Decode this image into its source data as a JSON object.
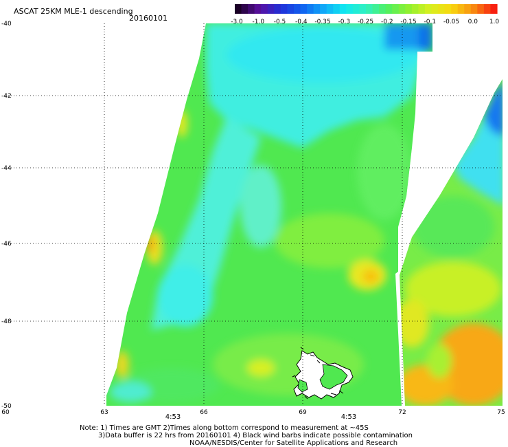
{
  "header": {
    "title": "ASCAT 25KM MLE-1 descending",
    "date": "20160101"
  },
  "colorbar": {
    "labels": [
      "-3.0",
      "-1.0",
      "-0.5",
      "-0.4",
      "-0.35",
      "-0.3",
      "-0.25",
      "-0.2",
      "-0.15",
      "-0.1",
      "-0.05",
      "0.0",
      "1.0"
    ],
    "colors": [
      "#1a0026",
      "#5a10a0",
      "#2030d8",
      "#1060f0",
      "#10a8f8",
      "#10e8f0",
      "#30f0c0",
      "#50f060",
      "#90f030",
      "#d8f020",
      "#f8d810",
      "#f89010",
      "#f82010"
    ]
  },
  "map": {
    "lat_labels": [
      "-40",
      "-42",
      "-44",
      "-46",
      "-48",
      "-50"
    ],
    "lon_labels": [
      "60",
      "63",
      "66",
      "69",
      "72",
      "75"
    ],
    "time_labels": [
      "4:53",
      "4:53"
    ],
    "time_color": "#c01010",
    "palette": {
      "green": "#50e850",
      "lime": "#80f040",
      "cyan": "#40f0e0",
      "blue": "#1080f0",
      "yellow": "#e8f020",
      "orange": "#f8a010"
    }
  },
  "notes": {
    "line1": "Note: 1) Times are GMT 2)Times along bottom correspond to measurement at ~45S",
    "line2": "3)Data buffer is 22 hrs from 20160101 4) Black wind barbs indicate possible contamination",
    "line3": "NOAA/NESDIS/Center for Satellite Applications and Research"
  }
}
